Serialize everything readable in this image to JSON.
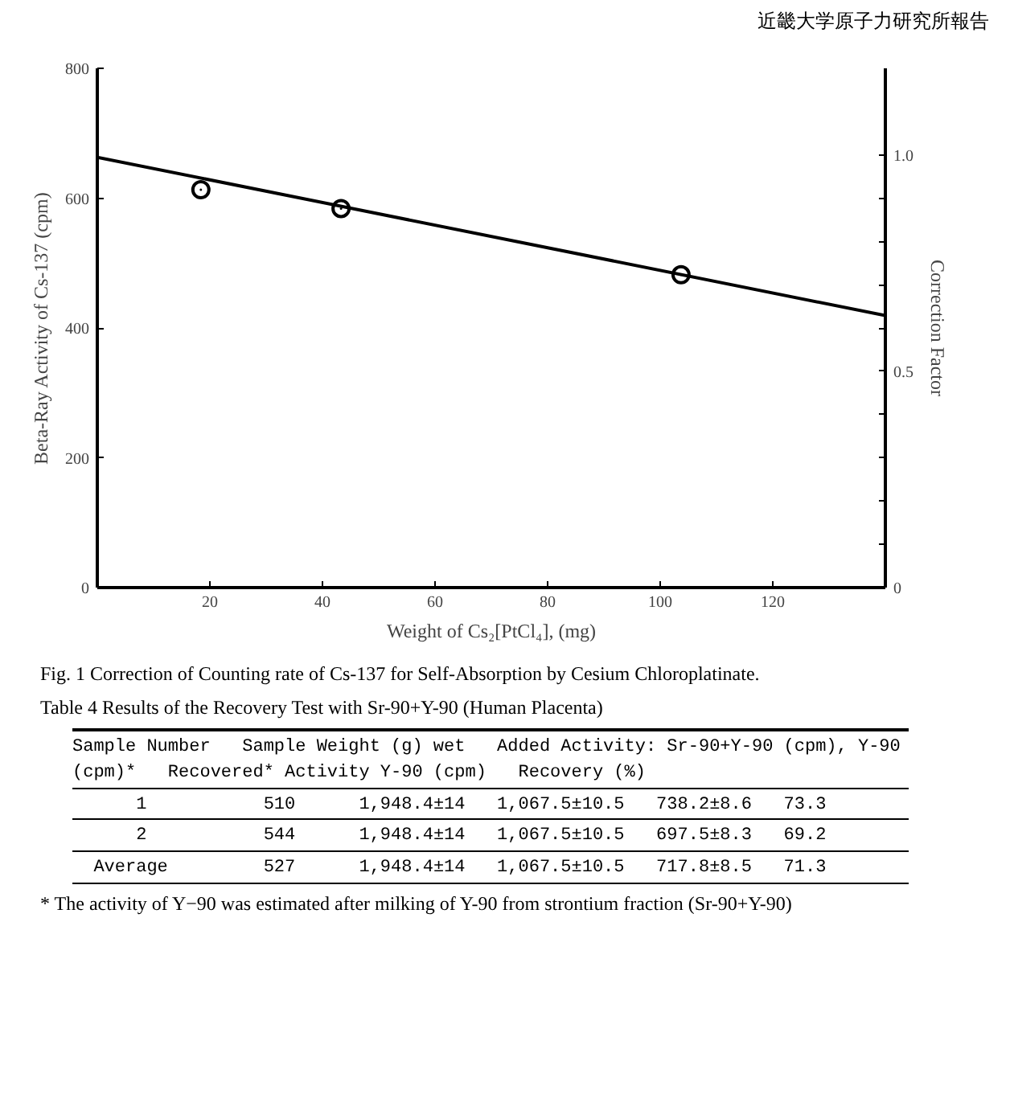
{
  "chart_data": {
    "type": "scatter",
    "xlabel": "Weight of Cs₂[PtCl₄], (mg)",
    "ylabel": "Beta-Ray Activity of Cs-137 (cpm)",
    "y2label": "Correction Factor",
    "xlim": [
      0,
      140
    ],
    "xticks": [
      20,
      40,
      60,
      80,
      100,
      120
    ],
    "ylim": [
      0,
      800
    ],
    "yticks": [
      0,
      200,
      400,
      600,
      800
    ],
    "y2lim": [
      0,
      1.2
    ],
    "y2ticks": [
      0,
      {
        "value": 0.1,
        "label": null
      },
      {
        "value": 0.2,
        "label": null
      },
      {
        "value": 0.3,
        "label": null
      },
      {
        "value": 0.4,
        "label": null
      },
      0.5,
      {
        "value": 0.6,
        "label": null
      },
      {
        "value": 0.7,
        "label": null
      },
      {
        "value": 0.8,
        "label": null
      },
      {
        "value": 0.9,
        "label": null
      },
      {
        "value": 1.0,
        "label": "1.0"
      }
    ],
    "grid": false,
    "marker": "circle",
    "x": [
      18.4,
      43.3,
      103.7
    ],
    "series": [
      {
        "color": "#000000",
        "values": [
          613,
          584,
          482
        ]
      },
      {
        "type": "line",
        "color": "#000000",
        "x": [
          0,
          140
        ],
        "values": [
          663,
          419
        ],
        "marker": "none",
        "line_style": "solid"
      }
    ],
    "annotations": [
      "近畿大学原子力研究所報告",
      "Fig. 1    Correction of Counting rate of Cs-137 for Self-Absorption by Cesium Chloroplatinate.",
      "Table 4    Results of the Recovery Test with Sr-90+Y-90 (Human Placenta)",
      "Sample Number   Sample Weight (g) wet   Added Activity: Sr-90+Y-90 (cpm), Y-90 (cpm)*   Recovered* Activity Y-90 (cpm)   Recovery (%)",
      "      1           510      1,948.4±14   1,067.5±10.5   738.2±8.6   73.3",
      "      2           544      1,948.4±14   1,067.5±10.5   697.5±8.3   69.2",
      "  Average         527      1,948.4±14   1,067.5±10.5   717.8±8.5   71.3",
      "* The activity of Y−90 was estimated after milking of Y-90 from strontium fraction (Sr-90+Y-90)"
    ]
  }
}
